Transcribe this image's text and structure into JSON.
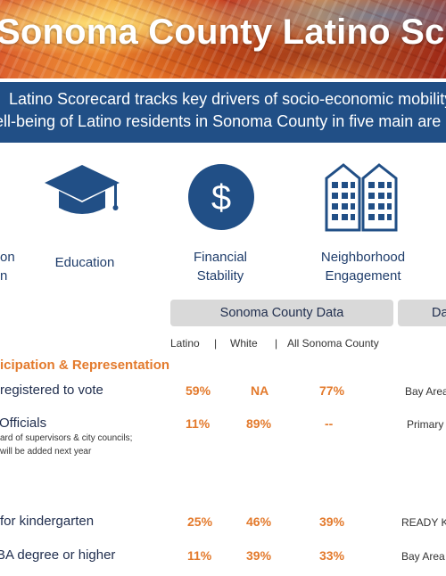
{
  "banner": {
    "title": "Sonoma County Latino Scorec"
  },
  "intro": {
    "line1": "Latino Scorecard tracks key drivers of socio-economic mobility",
    "line2": "ell-being of Latino residents in Sonoma County in five main are"
  },
  "categories": [
    {
      "label_lines": [
        "on",
        "n"
      ],
      "icon": "none"
    },
    {
      "label_lines": [
        "Education"
      ],
      "icon": "graduation-cap-icon"
    },
    {
      "label_lines": [
        "Financial",
        "Stability"
      ],
      "icon": "dollar-icon"
    },
    {
      "label_lines": [
        "Neighborhood",
        "Engagement"
      ],
      "icon": "buildings-icon"
    }
  ],
  "table": {
    "sonoma_header": "Sonoma County Data",
    "other_header": "Da",
    "columns": {
      "latino": "Latino",
      "sep1": "|",
      "white": "White",
      "sep2": "|",
      "all": "All Sonoma County"
    },
    "section": "icipation & Representation",
    "rows": [
      {
        "label": "registered to vote",
        "note": [],
        "latino": "59%",
        "white": "NA",
        "all": "77%",
        "source": "Bay Area"
      },
      {
        "label": "Officials",
        "note": [
          "ard of supervisors & city councils;",
          "will be added next year"
        ],
        "latino": "11%",
        "white": "89%",
        "all": "--",
        "source": "Primary"
      },
      {
        "label": "for kindergarten",
        "note": [],
        "latino": "25%",
        "white": "46%",
        "all": "39%",
        "source": "READY KS"
      },
      {
        "label": "BA degree or higher",
        "note": [],
        "latino": "11%",
        "white": "39%",
        "all": "33%",
        "source": "Bay Area"
      }
    ]
  },
  "colors": {
    "navy": "#214f86",
    "orange": "#e37a2c",
    "pill_gray": "#d9d9d9"
  }
}
